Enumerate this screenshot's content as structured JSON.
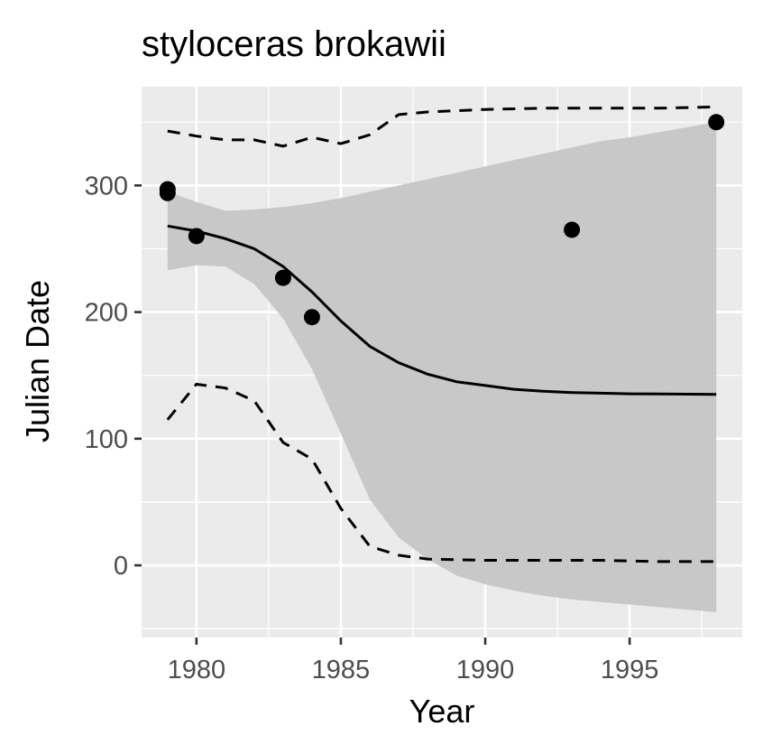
{
  "chart_data": {
    "type": "line",
    "title": "styloceras brokawii",
    "xlabel": "Year",
    "ylabel": "Julian Date",
    "xlim": [
      1978.1,
      1998.9
    ],
    "ylim": [
      -57,
      378
    ],
    "x_ticks": [
      1980,
      1985,
      1990,
      1995
    ],
    "x_tick_labels": [
      "1980",
      "1985",
      "1990",
      "1995"
    ],
    "y_ticks": [
      0,
      100,
      200,
      300
    ],
    "y_tick_labels": [
      "0",
      "100",
      "200",
      "300"
    ],
    "grid": true,
    "legend": "none",
    "colors": {
      "panel": "#ebebeb",
      "grid": "#ffffff",
      "ribbon": "#c8c8c8",
      "line": "#000000",
      "points": "#000000",
      "tick_text": "#4d4d4d",
      "tick_mark": "#333333"
    },
    "points": {
      "x": [
        1979,
        1979,
        1980,
        1983,
        1984,
        1993,
        1998
      ],
      "y": [
        297,
        294,
        260,
        227,
        196,
        265,
        350
      ]
    },
    "fit_line": {
      "x": [
        1979,
        1980,
        1981,
        1982,
        1983,
        1984,
        1985,
        1986,
        1987,
        1988,
        1989,
        1990,
        1991,
        1992,
        1993,
        1994,
        1995,
        1996,
        1997,
        1998
      ],
      "y": [
        268,
        264,
        258,
        250,
        236,
        216,
        193,
        173,
        160,
        151,
        145,
        142,
        139,
        137.5,
        136.5,
        136,
        135.5,
        135.3,
        135.2,
        135
      ]
    },
    "ribbon": {
      "x": [
        1979,
        1980,
        1981,
        1982,
        1983,
        1984,
        1985,
        1986,
        1987,
        1988,
        1989,
        1990,
        1991,
        1992,
        1993,
        1994,
        1995,
        1996,
        1997,
        1998
      ],
      "upper": [
        295,
        287,
        280,
        281,
        283,
        286,
        290,
        295,
        300,
        305,
        310,
        315,
        320,
        325,
        330,
        335,
        338,
        342,
        346,
        350
      ],
      "lower": [
        233,
        237,
        236,
        222,
        195,
        155,
        104,
        52,
        22,
        5,
        -8,
        -15,
        -20,
        -24,
        -27,
        -29,
        -31,
        -33,
        -35,
        -37
      ]
    },
    "dashed_upper": {
      "x": [
        1979,
        1980,
        1981,
        1982,
        1983,
        1984,
        1985,
        1986,
        1987,
        1988,
        1990,
        1992,
        1994,
        1996,
        1998
      ],
      "y": [
        343,
        339,
        336,
        336,
        331,
        338,
        333,
        340,
        356,
        358,
        360,
        361,
        361,
        361,
        362
      ]
    },
    "dashed_lower": {
      "x": [
        1979,
        1980,
        1981,
        1982,
        1983,
        1984,
        1985,
        1986,
        1987,
        1988,
        1990,
        1992,
        1994,
        1996,
        1998
      ],
      "y": [
        115,
        143,
        140,
        130,
        97,
        84,
        45,
        15,
        8,
        5,
        4,
        4,
        4,
        3,
        3
      ]
    }
  }
}
